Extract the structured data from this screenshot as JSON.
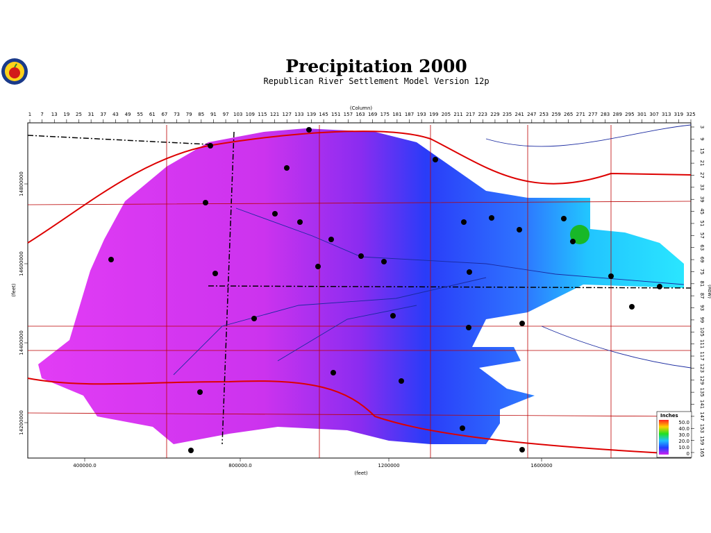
{
  "header": {
    "title": "Precipitation 2000",
    "subtitle": "Republican River Settlement Model Version 12p"
  },
  "map": {
    "column_axis": {
      "label": "(Column)",
      "ticks": [
        1,
        7,
        13,
        19,
        25,
        31,
        37,
        43,
        49,
        55,
        61,
        67,
        73,
        79,
        85,
        91,
        97,
        103,
        109,
        115,
        121,
        127,
        133,
        139,
        145,
        151,
        157,
        163,
        169,
        175,
        181,
        187,
        193,
        199,
        205,
        211,
        217,
        223,
        229,
        235,
        241,
        247,
        253,
        259,
        265,
        271,
        277,
        283,
        289,
        295,
        301,
        307,
        313,
        319,
        325
      ]
    },
    "row_axis": {
      "label": "(Row)",
      "ticks": [
        3,
        9,
        15,
        21,
        27,
        33,
        39,
        45,
        51,
        57,
        63,
        69,
        75,
        81,
        87,
        93,
        99,
        105,
        111,
        117,
        123,
        129,
        135,
        141,
        147,
        153,
        159,
        165
      ]
    },
    "x_axis": {
      "label": "(feet)",
      "ticks": [
        "400000.0",
        "800000.0",
        "1200000",
        "1600000"
      ]
    },
    "y_axis": {
      "label": "(feet)",
      "ticks": [
        "14800000",
        "14600000",
        "14400000",
        "14200000"
      ]
    },
    "legend": {
      "title": "Inches",
      "labels": [
        "50.0",
        "40.0",
        "30.0",
        "20.0",
        "10.0",
        "0"
      ]
    }
  }
}
